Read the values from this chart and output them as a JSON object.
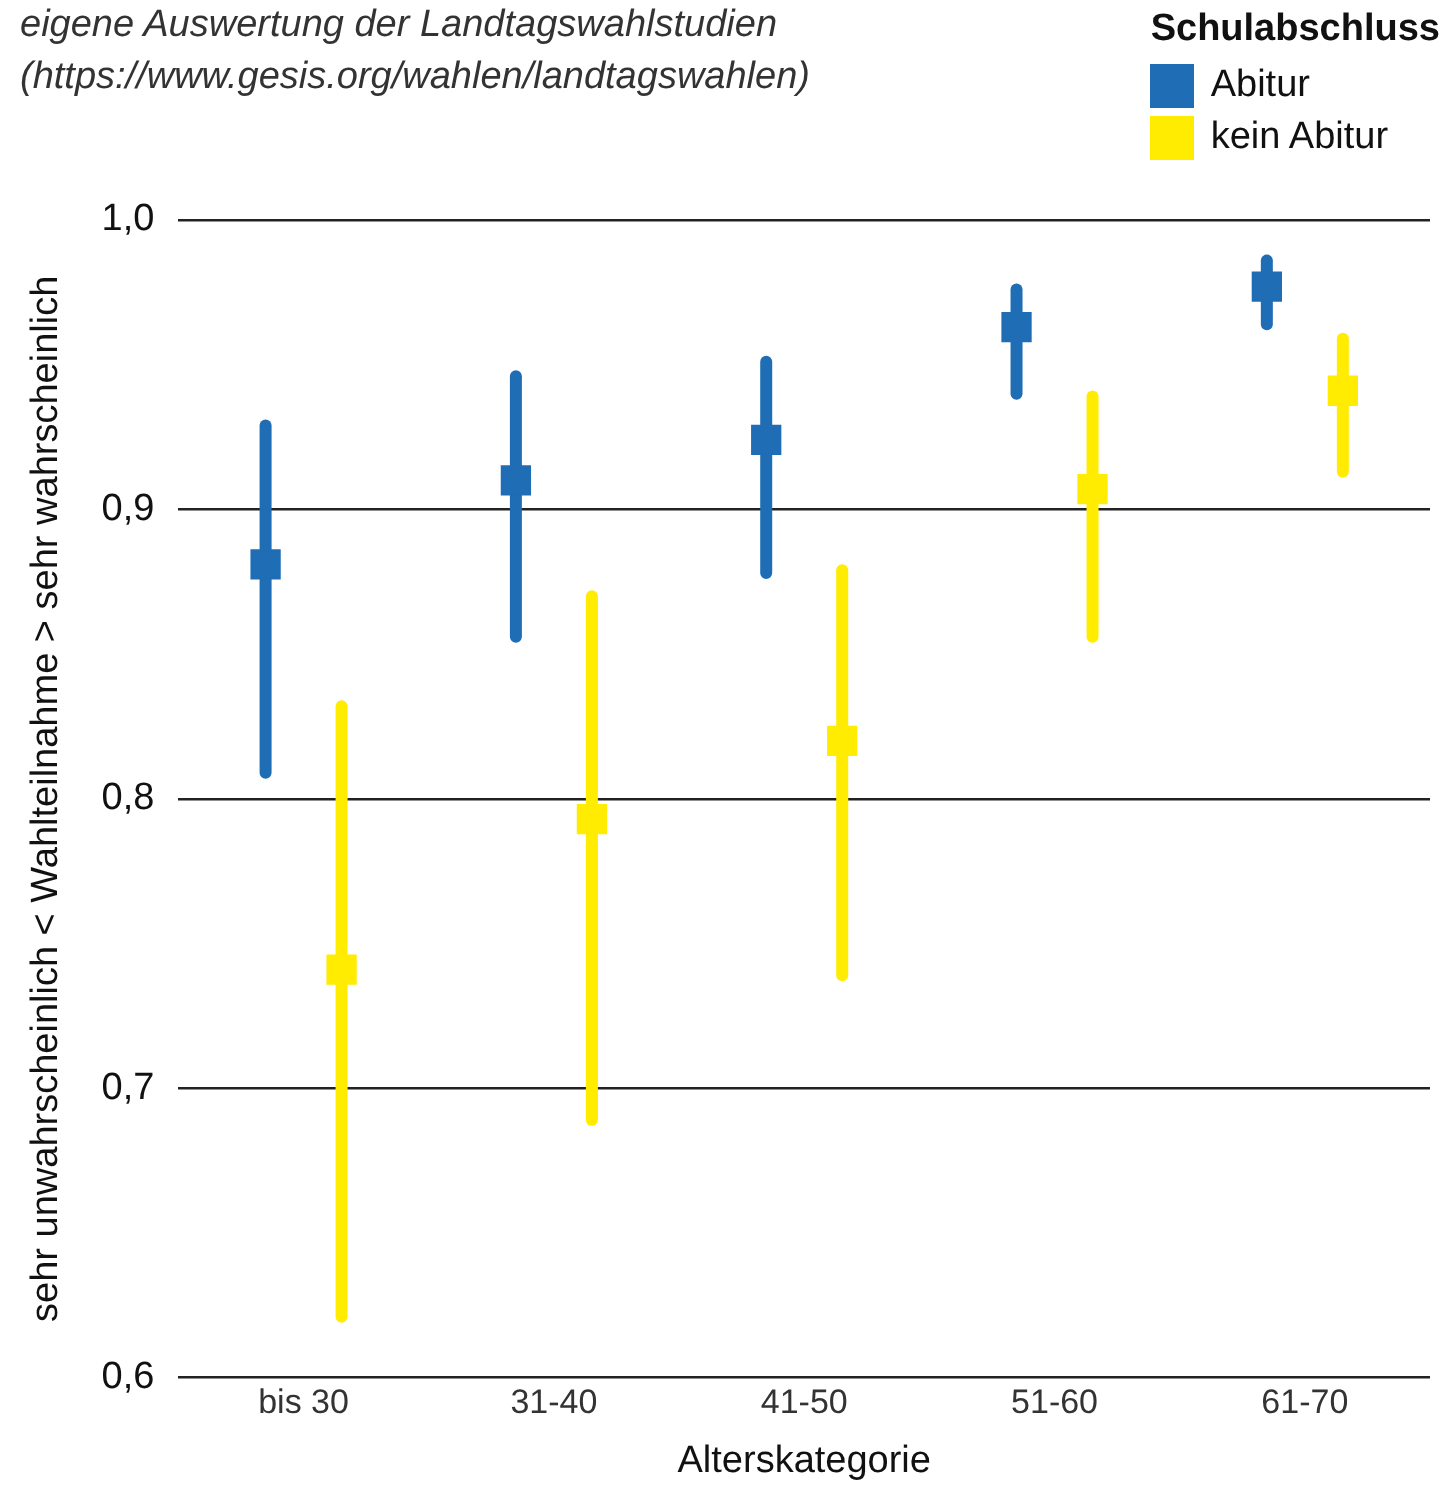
{
  "chart_data": {
    "type": "scatter",
    "xlabel": "Alterskategorie",
    "ylabel": "sehr unwahrscheinlich < Wahlteilnahme > sehr wahrscheinlich",
    "legend_title": "Schulabschluss",
    "annotations": [
      "eigene Auswertung der Landtagswahlstudien",
      "(https://www.gesis.org/wahlen/landtagswahlen)"
    ],
    "categories": [
      "bis 30",
      "31-40",
      "41-50",
      "51-60",
      "61-70"
    ],
    "series": [
      {
        "name": "Abitur",
        "color": "#1f6db5",
        "values": [
          0.881,
          0.91,
          0.924,
          0.963,
          0.977
        ],
        "errors": [
          [
            0.809,
            0.929
          ],
          [
            0.856,
            0.946
          ],
          [
            0.878,
            0.951
          ],
          [
            0.94,
            0.976
          ],
          [
            0.964,
            0.986
          ]
        ]
      },
      {
        "name": "kein Abitur",
        "color": "#ffec00",
        "values": [
          0.741,
          0.793,
          0.82,
          0.907,
          0.941
        ],
        "errors": [
          [
            0.621,
            0.832
          ],
          [
            0.689,
            0.87
          ],
          [
            0.739,
            0.879
          ],
          [
            0.856,
            0.939
          ],
          [
            0.913,
            0.959
          ]
        ]
      }
    ],
    "ylim": [
      0.6,
      1.0
    ],
    "yticks": [
      {
        "value": 0.6,
        "label": "0,6"
      },
      {
        "value": 0.7,
        "label": "0,7"
      },
      {
        "value": 0.8,
        "label": "0,8"
      },
      {
        "value": 0.9,
        "label": "0,9"
      },
      {
        "value": 1.0,
        "label": "1,0"
      }
    ],
    "grid": "y",
    "legend": "top right",
    "marker": "square"
  }
}
